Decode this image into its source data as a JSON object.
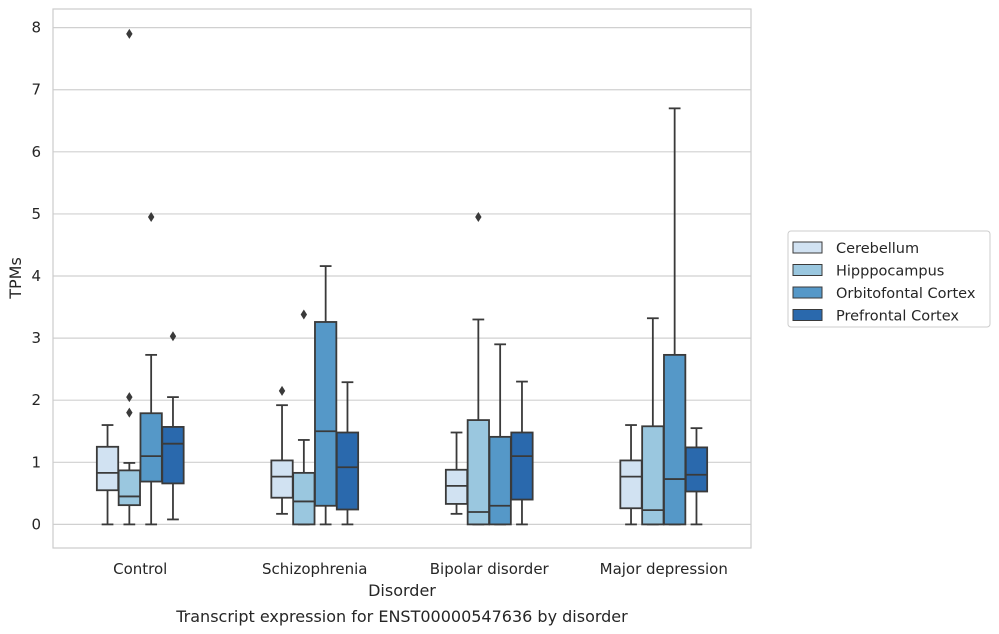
{
  "caption": "Transcript expression for ENST00000547636 by disorder",
  "chart_data": {
    "type": "box",
    "title": "",
    "xlabel": "Disorder",
    "ylabel": "TPMs",
    "ylim": [
      -0.38,
      8.3
    ],
    "yticks": [
      0,
      1,
      2,
      3,
      4,
      5,
      6,
      7,
      8
    ],
    "grid": "horizontal",
    "legend_position": "right",
    "categories": [
      "Control",
      "Schizophrenia",
      "Bipolar disorder",
      "Major depression"
    ],
    "series": [
      {
        "name": "Cerebellum",
        "color": "#d1e2f2",
        "boxes": [
          {
            "whisker_low": 0.0,
            "q1": 0.55,
            "median": 0.83,
            "q3": 1.25,
            "whisker_high": 1.6,
            "outliers": []
          },
          {
            "whisker_low": 0.17,
            "q1": 0.43,
            "median": 0.77,
            "q3": 1.03,
            "whisker_high": 1.92,
            "outliers": [
              2.15
            ]
          },
          {
            "whisker_low": 0.17,
            "q1": 0.33,
            "median": 0.62,
            "q3": 0.88,
            "whisker_high": 1.48,
            "outliers": []
          },
          {
            "whisker_low": 0.0,
            "q1": 0.26,
            "median": 0.77,
            "q3": 1.03,
            "whisker_high": 1.6,
            "outliers": []
          }
        ]
      },
      {
        "name": "Hipppocampus",
        "color": "#9ac7df",
        "boxes": [
          {
            "whisker_low": 0.0,
            "q1": 0.31,
            "median": 0.45,
            "q3": 0.87,
            "whisker_high": 0.99,
            "outliers": [
              1.8,
              2.05,
              7.9
            ]
          },
          {
            "whisker_low": 0.0,
            "q1": 0.0,
            "median": 0.37,
            "q3": 0.83,
            "whisker_high": 1.36,
            "outliers": [
              3.38
            ]
          },
          {
            "whisker_low": 0.0,
            "q1": 0.0,
            "median": 0.2,
            "q3": 1.68,
            "whisker_high": 3.3,
            "outliers": [
              4.95
            ]
          },
          {
            "whisker_low": 0.0,
            "q1": 0.0,
            "median": 0.23,
            "q3": 1.58,
            "whisker_high": 3.32,
            "outliers": []
          }
        ]
      },
      {
        "name": "Orbitofontal Cortex",
        "color": "#5598c8",
        "boxes": [
          {
            "whisker_low": 0.0,
            "q1": 0.69,
            "median": 1.1,
            "q3": 1.79,
            "whisker_high": 2.73,
            "outliers": [
              4.95
            ]
          },
          {
            "whisker_low": 0.0,
            "q1": 0.3,
            "median": 1.5,
            "q3": 3.26,
            "whisker_high": 4.16,
            "outliers": []
          },
          {
            "whisker_low": 0.0,
            "q1": 0.0,
            "median": 0.3,
            "q3": 1.41,
            "whisker_high": 2.9,
            "outliers": []
          },
          {
            "whisker_low": 0.0,
            "q1": 0.0,
            "median": 0.73,
            "q3": 2.73,
            "whisker_high": 6.7,
            "outliers": []
          }
        ]
      },
      {
        "name": "Prefrontal Cortex",
        "color": "#2a69ad",
        "boxes": [
          {
            "whisker_low": 0.08,
            "q1": 0.66,
            "median": 1.3,
            "q3": 1.57,
            "whisker_high": 2.05,
            "outliers": [
              3.03
            ]
          },
          {
            "whisker_low": 0.0,
            "q1": 0.24,
            "median": 0.92,
            "q3": 1.48,
            "whisker_high": 2.29,
            "outliers": []
          },
          {
            "whisker_low": 0.0,
            "q1": 0.4,
            "median": 1.1,
            "q3": 1.48,
            "whisker_high": 2.3,
            "outliers": []
          },
          {
            "whisker_low": 0.0,
            "q1": 0.53,
            "median": 0.8,
            "q3": 1.24,
            "whisker_high": 1.55,
            "outliers": []
          }
        ]
      }
    ]
  }
}
